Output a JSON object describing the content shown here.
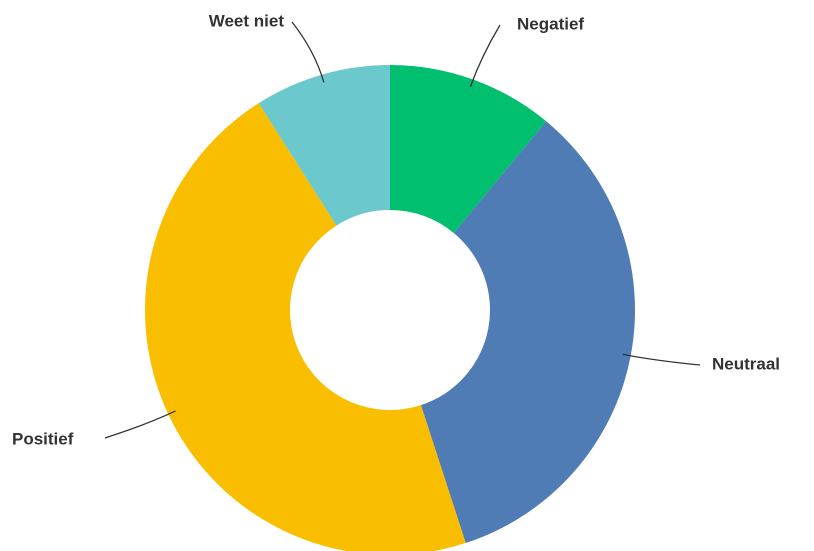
{
  "chart_data": {
    "type": "pie",
    "donut": true,
    "categories": [
      "Negatief",
      "Neutraal",
      "Positief",
      "Weet niet"
    ],
    "values": [
      11,
      34,
      46,
      9
    ],
    "colors": [
      "#00bf6f",
      "#507cb6",
      "#f9be00",
      "#6bc8cd"
    ]
  }
}
